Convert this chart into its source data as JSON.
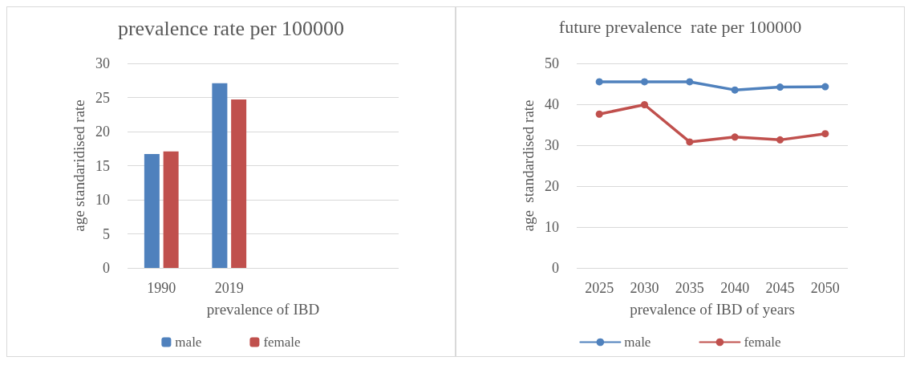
{
  "chart_data": [
    {
      "type": "bar",
      "title": "prevalence rate per 100000",
      "xlabel": "prevalence of IBD",
      "ylabel": "age standaridised rate",
      "categories": [
        "1990",
        "2019",
        null,
        null
      ],
      "series": [
        {
          "name": "male",
          "color": "#4f81bd",
          "values": [
            16.7,
            27.1,
            null,
            null
          ]
        },
        {
          "name": "female",
          "color": "#c0504d",
          "values": [
            17.1,
            24.7,
            null,
            null
          ]
        }
      ],
      "ylim": [
        0,
        30
      ],
      "yticks": [
        0,
        5,
        10,
        15,
        20,
        25,
        30
      ],
      "grid": "y",
      "legend": "bottom"
    },
    {
      "type": "line",
      "title": "future prevalence  rate per 100000",
      "xlabel": "prevalence of IBD of years",
      "ylabel": "age  standardised rate",
      "categories": [
        "2025",
        "2030",
        "2035",
        "2040",
        "2045",
        "2050"
      ],
      "series": [
        {
          "name": "male",
          "color": "#4f81bd",
          "values": [
            45.5,
            45.5,
            45.5,
            43.5,
            44.2,
            44.3
          ]
        },
        {
          "name": "female",
          "color": "#c0504d",
          "values": [
            37.6,
            39.9,
            30.8,
            32.0,
            31.3,
            32.8
          ]
        }
      ],
      "ylim": [
        0,
        50
      ],
      "yticks": [
        0,
        10,
        20,
        30,
        40,
        50
      ],
      "grid": "y",
      "legend": "bottom",
      "marker": "circle",
      "line_style": "solid"
    }
  ]
}
